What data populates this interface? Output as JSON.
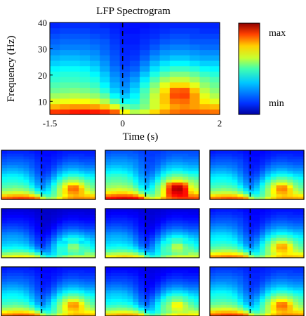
{
  "chart_data": {
    "type": "heatmap",
    "title": "LFP Spectrogram",
    "xlabel": "Time (s)",
    "ylabel": "Frequency (Hz)",
    "xlim": [
      -1.5,
      2
    ],
    "ylim": [
      5,
      40
    ],
    "x_ticks": [
      {
        "value": -1.5,
        "label": "-1.5"
      },
      {
        "value": 0,
        "label": "0"
      },
      {
        "value": 2,
        "label": "2"
      }
    ],
    "y_ticks": [
      {
        "value": 10,
        "label": "10"
      },
      {
        "value": 20,
        "label": "20"
      },
      {
        "value": 30,
        "label": "30"
      },
      {
        "value": 40,
        "label": "40"
      }
    ],
    "event_marker_time": 0,
    "colorbar": {
      "max_label": "max",
      "min_label": "min",
      "colormap": "jet"
    },
    "time_centers": [
      -1.4,
      -1.2,
      -1.0,
      -0.8,
      -0.6,
      -0.4,
      -0.2,
      0.0,
      0.2,
      0.4,
      0.6,
      0.8,
      1.0,
      1.2,
      1.4,
      1.6,
      1.8
    ],
    "freq_centers": [
      6,
      8,
      10,
      12,
      14,
      16,
      18,
      20,
      22,
      24,
      26,
      28,
      30,
      32,
      34,
      36,
      38
    ],
    "power_matrix_note": "",
    "power": [
      [
        0.82,
        0.83,
        0.85,
        0.86,
        0.85,
        0.83,
        0.78,
        0.62,
        0.55,
        0.58,
        0.66,
        0.72,
        0.76,
        0.78,
        0.78,
        0.77,
        0.76
      ],
      [
        0.7,
        0.72,
        0.73,
        0.73,
        0.72,
        0.68,
        0.6,
        0.48,
        0.45,
        0.5,
        0.58,
        0.66,
        0.72,
        0.74,
        0.72,
        0.7,
        0.69
      ],
      [
        0.6,
        0.61,
        0.62,
        0.62,
        0.6,
        0.55,
        0.46,
        0.38,
        0.4,
        0.48,
        0.58,
        0.68,
        0.76,
        0.77,
        0.72,
        0.64,
        0.6
      ],
      [
        0.53,
        0.54,
        0.55,
        0.54,
        0.52,
        0.47,
        0.38,
        0.32,
        0.37,
        0.46,
        0.57,
        0.68,
        0.8,
        0.81,
        0.72,
        0.6,
        0.55
      ],
      [
        0.48,
        0.49,
        0.5,
        0.49,
        0.47,
        0.41,
        0.33,
        0.28,
        0.34,
        0.44,
        0.54,
        0.65,
        0.78,
        0.79,
        0.68,
        0.56,
        0.51
      ],
      [
        0.45,
        0.46,
        0.46,
        0.45,
        0.43,
        0.37,
        0.3,
        0.26,
        0.31,
        0.4,
        0.5,
        0.6,
        0.66,
        0.66,
        0.6,
        0.52,
        0.48
      ],
      [
        0.42,
        0.43,
        0.43,
        0.42,
        0.4,
        0.34,
        0.28,
        0.24,
        0.28,
        0.36,
        0.45,
        0.53,
        0.57,
        0.57,
        0.53,
        0.48,
        0.45
      ],
      [
        0.4,
        0.41,
        0.41,
        0.4,
        0.37,
        0.32,
        0.26,
        0.22,
        0.25,
        0.32,
        0.4,
        0.46,
        0.5,
        0.5,
        0.47,
        0.43,
        0.41
      ],
      [
        0.37,
        0.38,
        0.38,
        0.37,
        0.34,
        0.29,
        0.24,
        0.2,
        0.22,
        0.28,
        0.35,
        0.4,
        0.43,
        0.43,
        0.41,
        0.38,
        0.37
      ],
      [
        0.33,
        0.34,
        0.34,
        0.33,
        0.31,
        0.27,
        0.22,
        0.18,
        0.2,
        0.25,
        0.31,
        0.35,
        0.37,
        0.37,
        0.35,
        0.33,
        0.33
      ],
      [
        0.3,
        0.31,
        0.31,
        0.3,
        0.28,
        0.25,
        0.21,
        0.17,
        0.18,
        0.22,
        0.27,
        0.3,
        0.32,
        0.32,
        0.3,
        0.29,
        0.29
      ],
      [
        0.27,
        0.28,
        0.28,
        0.27,
        0.26,
        0.23,
        0.2,
        0.16,
        0.17,
        0.2,
        0.24,
        0.27,
        0.28,
        0.28,
        0.27,
        0.26,
        0.26
      ],
      [
        0.24,
        0.25,
        0.25,
        0.25,
        0.24,
        0.22,
        0.19,
        0.16,
        0.16,
        0.18,
        0.21,
        0.24,
        0.25,
        0.25,
        0.24,
        0.23,
        0.23
      ],
      [
        0.22,
        0.23,
        0.23,
        0.23,
        0.22,
        0.21,
        0.18,
        0.15,
        0.15,
        0.17,
        0.19,
        0.21,
        0.22,
        0.22,
        0.21,
        0.21,
        0.21
      ],
      [
        0.2,
        0.21,
        0.21,
        0.21,
        0.2,
        0.19,
        0.17,
        0.15,
        0.15,
        0.16,
        0.17,
        0.19,
        0.2,
        0.2,
        0.19,
        0.19,
        0.19
      ],
      [
        0.18,
        0.19,
        0.19,
        0.19,
        0.18,
        0.18,
        0.16,
        0.14,
        0.14,
        0.15,
        0.16,
        0.17,
        0.18,
        0.18,
        0.18,
        0.17,
        0.17
      ],
      [
        0.16,
        0.17,
        0.17,
        0.17,
        0.17,
        0.16,
        0.15,
        0.14,
        0.14,
        0.14,
        0.15,
        0.16,
        0.16,
        0.16,
        0.16,
        0.16,
        0.16
      ]
    ],
    "subpanels": [
      {
        "label": ""
      },
      {
        "label": ""
      },
      {
        "label": ""
      },
      {
        "label": ""
      },
      {
        "label": ""
      },
      {
        "label": ""
      },
      {
        "label": ""
      },
      {
        "label": ""
      },
      {
        "label": ""
      }
    ]
  }
}
